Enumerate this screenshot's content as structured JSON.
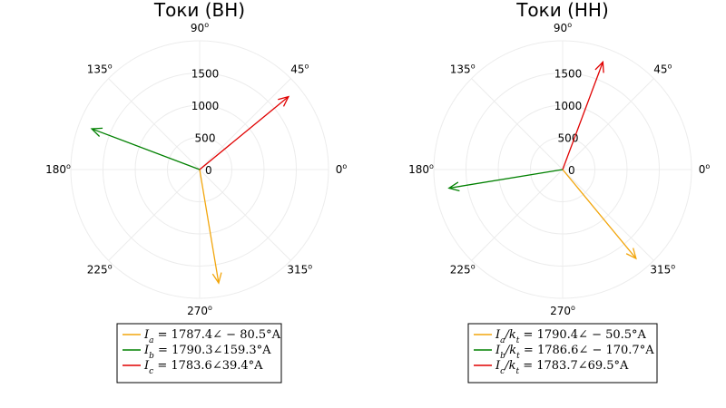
{
  "chart_data": [
    {
      "type": "polar-phasor",
      "title": "Токи (ВН)",
      "r_ticks": [
        0,
        500,
        1000,
        1500
      ],
      "r_max": 2000,
      "angle_ticks": [
        0,
        45,
        90,
        135,
        180,
        225,
        270,
        315
      ],
      "angle_tick_suffix": "o",
      "grid": true,
      "legend_position": "bottom",
      "series": [
        {
          "name": "I_a = 1787.4∠ − 80.5°A",
          "magnitude": 1787.4,
          "angle": -80.5,
          "color": "#f2a60d"
        },
        {
          "name": "I_b = 1790.3∠159.3°A",
          "magnitude": 1790.3,
          "angle": 159.3,
          "color": "#008000"
        },
        {
          "name": "I_c = 1783.6∠39.4°A",
          "magnitude": 1783.6,
          "angle": 39.4,
          "color": "#e00000"
        }
      ]
    },
    {
      "type": "polar-phasor",
      "title": "Токи (НН)",
      "r_ticks": [
        0,
        500,
        1000,
        1500
      ],
      "r_max": 2000,
      "angle_ticks": [
        0,
        45,
        90,
        135,
        180,
        225,
        270,
        315
      ],
      "angle_tick_suffix": "o",
      "grid": true,
      "legend_position": "bottom",
      "series": [
        {
          "name": "I_a/k_t = 1790.4∠ − 50.5°A",
          "magnitude": 1790.4,
          "angle": -50.5,
          "color": "#f2a60d"
        },
        {
          "name": "I_b/k_t = 1786.6∠ − 170.7°A",
          "magnitude": 1786.6,
          "angle": -170.7,
          "color": "#008000"
        },
        {
          "name": "I_c/k_t = 1783.7∠69.5°A",
          "magnitude": 1783.7,
          "angle": 69.5,
          "color": "#e00000"
        }
      ]
    }
  ]
}
